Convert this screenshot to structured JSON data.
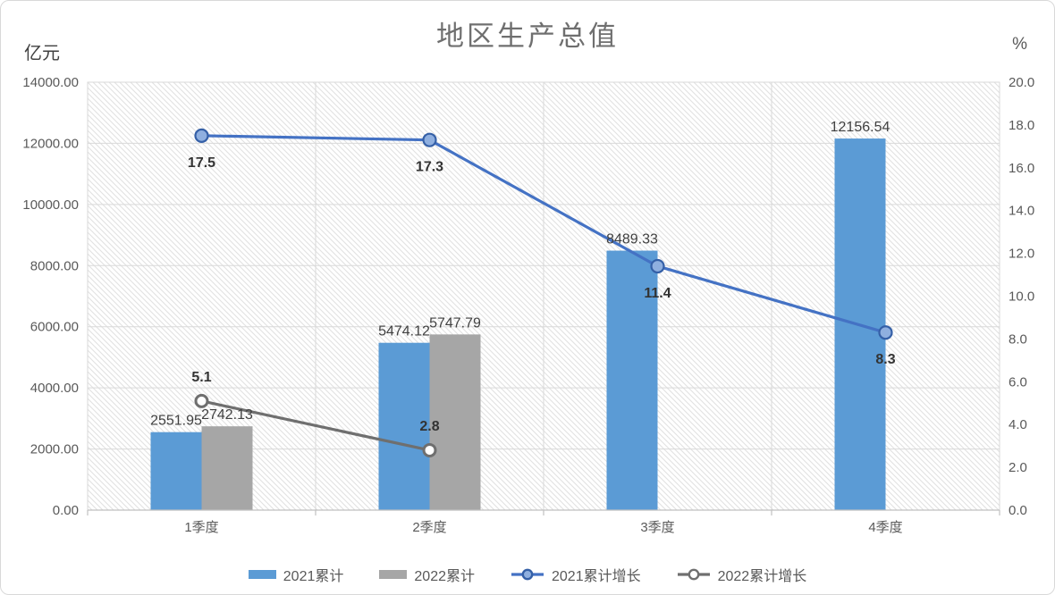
{
  "chart_data": {
    "type": "combo-bar-line",
    "title": "地区生产总值",
    "left_axis": {
      "title": "亿元",
      "min": 0,
      "max": 14000,
      "step": 2000
    },
    "right_axis": {
      "title": "%",
      "min": 0,
      "max": 20,
      "step": 2
    },
    "categories": [
      "1季度",
      "2季度",
      "3季度",
      "4季度"
    ],
    "bar_series": [
      {
        "name": "2021累计",
        "color": "#5B9BD5",
        "values": [
          2551.95,
          5474.12,
          8489.33,
          12156.54
        ],
        "labels": [
          "2551.95",
          "5474.12",
          "8489.33",
          "12156.54"
        ]
      },
      {
        "name": "2022累计",
        "color": "#A6A6A6",
        "values": [
          2742.13,
          5747.79,
          null,
          null
        ],
        "labels": [
          "2742.13",
          "5747.79",
          null,
          null
        ]
      }
    ],
    "line_series": [
      {
        "name": "2021累计增长",
        "color": "#4472C4",
        "marker_fill": "#8FAFDF",
        "marker_stroke": "#3560A7",
        "values": [
          17.5,
          17.3,
          11.4,
          8.3
        ],
        "labels": [
          "17.5",
          "17.3",
          "11.4",
          "8.3"
        ],
        "label_side": "below"
      },
      {
        "name": "2022累计增长",
        "color": "#6F6F6F",
        "marker_fill": "#FFFFFF",
        "marker_stroke": "#6F6F6F",
        "values": [
          5.1,
          2.8,
          null,
          null
        ],
        "labels": [
          "5.1",
          "2.8",
          null,
          null
        ],
        "label_side": "above"
      }
    ],
    "legend": [
      "2021累计",
      "2022累计",
      "2021累计增长",
      "2022累计增长"
    ],
    "colors": {
      "gridline": "#D9D9D9",
      "axis_line": "#C0C0C0",
      "hatch": "#E2E2E2",
      "plot_border": "#D9D9D9"
    }
  }
}
